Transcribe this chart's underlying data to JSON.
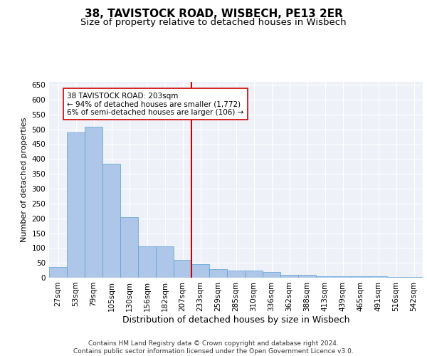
{
  "title1": "38, TAVISTOCK ROAD, WISBECH, PE13 2ER",
  "title2": "Size of property relative to detached houses in Wisbech",
  "xlabel": "Distribution of detached houses by size in Wisbech",
  "ylabel": "Number of detached properties",
  "bar_labels": [
    "27sqm",
    "53sqm",
    "79sqm",
    "105sqm",
    "130sqm",
    "156sqm",
    "182sqm",
    "207sqm",
    "233sqm",
    "259sqm",
    "285sqm",
    "310sqm",
    "336sqm",
    "362sqm",
    "388sqm",
    "413sqm",
    "439sqm",
    "465sqm",
    "491sqm",
    "516sqm",
    "542sqm"
  ],
  "bar_values": [
    35,
    490,
    510,
    385,
    205,
    105,
    105,
    60,
    45,
    30,
    25,
    25,
    20,
    10,
    10,
    5,
    5,
    5,
    5,
    2,
    2
  ],
  "bar_color": "#aec6e8",
  "bar_edge_color": "#5a9fd4",
  "highlight_index": 7,
  "highlight_line_color": "#cc0000",
  "annotation_text": "38 TAVISTOCK ROAD: 203sqm\n← 94% of detached houses are smaller (1,772)\n6% of semi-detached houses are larger (106) →",
  "annotation_box_color": "#ffffff",
  "annotation_box_edge": "#cc0000",
  "ylim": [
    0,
    660
  ],
  "yticks": [
    0,
    50,
    100,
    150,
    200,
    250,
    300,
    350,
    400,
    450,
    500,
    550,
    600,
    650
  ],
  "footer": "Contains HM Land Registry data © Crown copyright and database right 2024.\nContains public sector information licensed under the Open Government Licence v3.0.",
  "bg_color": "#eef2f8",
  "grid_color": "#ffffff",
  "title1_fontsize": 11,
  "title2_fontsize": 9.5,
  "xlabel_fontsize": 9,
  "ylabel_fontsize": 8,
  "tick_fontsize": 7.5,
  "footer_fontsize": 6.5
}
